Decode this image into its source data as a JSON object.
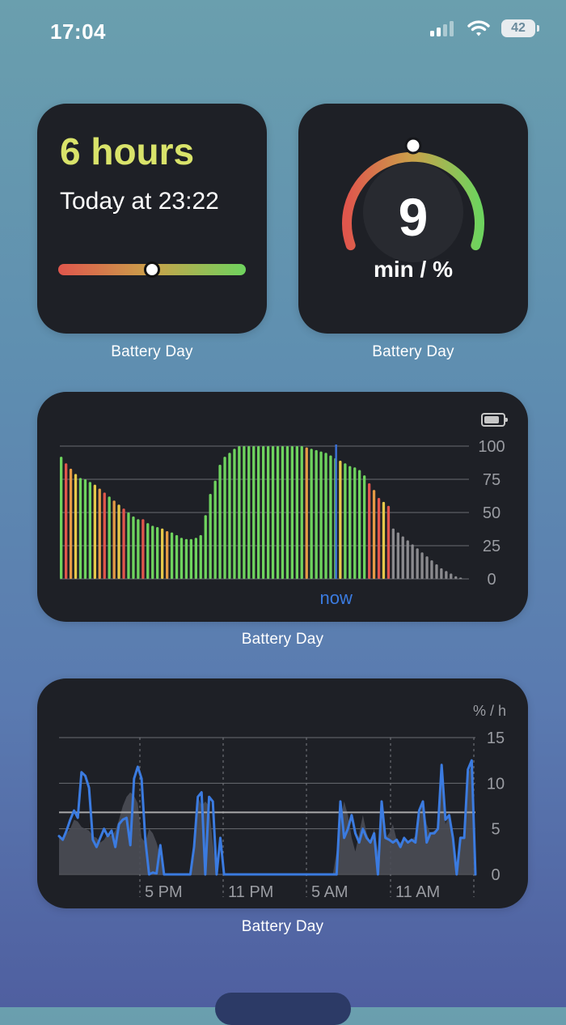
{
  "status_bar": {
    "time": "17:04",
    "battery_level": "42",
    "signal_icon": "cellular-signal-icon",
    "wifi_icon": "wifi-icon"
  },
  "widget_estimate": {
    "hours_text": "6 hours",
    "until_text": "Today at 23:22",
    "knob_fraction": 0.5,
    "caption": "Battery Day"
  },
  "widget_gauge": {
    "value": "9",
    "unit": "min / %",
    "knob_fraction": 0.5,
    "caption": "Battery Day"
  },
  "widget_level_chart": {
    "caption": "Battery Day",
    "now_label": "now",
    "battery_icon": "battery-icon",
    "colors": {
      "green": "#6ed35e",
      "yellow": "#e6c84a",
      "orange": "#e59a45",
      "red": "#e0564c",
      "gray": "#8a8a8e",
      "now_line": "#3b6fd4"
    }
  },
  "widget_rate_chart": {
    "caption": "Battery Day",
    "unit_label": "% / h",
    "colors": {
      "line": "#3b7be0",
      "area": "#4a4d55",
      "avg_line": "#a8a8aa"
    }
  },
  "chart_data": [
    {
      "type": "bar",
      "title": "",
      "xlabel": "",
      "ylabel": "",
      "ylim": [
        0,
        100
      ],
      "y_ticks": [
        "100",
        "75",
        "50",
        "25",
        "0"
      ],
      "annotation": "now",
      "now_index": 57,
      "grid": true,
      "series": [
        {
          "values": [
            92,
            87,
            83,
            79,
            76,
            75,
            73,
            71,
            68,
            65,
            62,
            59,
            56,
            53,
            50,
            47,
            45,
            45,
            42,
            40,
            39,
            38,
            36,
            35,
            33,
            31,
            30,
            30,
            31,
            33,
            48,
            64,
            74,
            86,
            92,
            95,
            98,
            100,
            100,
            100,
            100,
            100,
            100,
            100,
            100,
            100,
            100,
            100,
            100,
            100,
            100,
            99,
            98,
            97,
            96,
            95,
            93,
            91,
            89,
            87,
            85,
            84,
            82,
            78,
            72,
            67,
            61,
            58,
            55
          ]
        },
        {
          "values": [
            38,
            35,
            32,
            29,
            26,
            23,
            20,
            17,
            14,
            11,
            8,
            6,
            4,
            2,
            1
          ]
        }
      ],
      "bar_colors": [
        "green",
        "red",
        "orange",
        "yellow",
        "green",
        "green",
        "green",
        "yellow",
        "orange",
        "red",
        "green",
        "orange",
        "yellow",
        "red",
        "green",
        "green",
        "green",
        "red",
        "green",
        "green",
        "green",
        "yellow",
        "orange",
        "green",
        "green",
        "green",
        "green",
        "green",
        "green",
        "green",
        "green",
        "green",
        "green",
        "green",
        "green",
        "green",
        "green",
        "green",
        "green",
        "green",
        "green",
        "green",
        "green",
        "green",
        "green",
        "green",
        "green",
        "green",
        "green",
        "green",
        "green",
        "orange",
        "green",
        "green",
        "green",
        "green",
        "green",
        "green",
        "yellow",
        "green",
        "green",
        "green",
        "green",
        "green",
        "red",
        "orange",
        "red",
        "yellow",
        "red"
      ]
    },
    {
      "type": "area",
      "title": "",
      "unit": "% / h",
      "ylim": [
        0,
        15
      ],
      "y_ticks": [
        "15",
        "10",
        "5",
        "0"
      ],
      "x_tick_labels": [
        "5 PM",
        "11 PM",
        "5 AM",
        "11 AM"
      ],
      "average": 6.8,
      "grid": true,
      "series": [
        {
          "values": [
            4.2,
            4.0,
            4.5,
            5.0,
            6.0,
            5.8,
            5.2,
            5.0,
            4.8,
            4.2,
            4.0,
            3.5,
            3.8,
            4.5,
            4.2,
            4.8,
            6.0,
            7.5,
            8.5,
            9.0,
            8.6,
            7.8,
            4.0,
            3.5,
            5.0,
            4.5,
            3.5,
            2.0,
            0,
            0,
            0,
            0,
            0,
            0,
            0,
            0,
            2.0,
            8.5,
            7.5,
            8.0,
            7.5,
            3.5,
            0,
            0,
            0,
            0,
            0,
            0,
            0,
            0,
            0,
            0,
            0,
            0,
            0,
            0,
            0,
            0,
            0,
            0,
            0,
            0,
            0,
            0,
            0,
            0,
            0,
            0,
            0,
            0,
            0,
            0,
            0,
            0,
            2.5,
            6.0,
            8.0,
            6.5,
            4.0,
            2.5,
            4.5,
            6.5,
            4.5,
            3.5,
            5.0,
            2.5,
            8.0,
            4.0,
            4.5,
            5.5,
            3.8,
            3.5,
            4.0,
            3.5,
            3.8,
            4.2,
            6.0,
            8.0,
            5.5,
            4.5,
            4.8,
            5.0,
            12.2,
            5.5,
            6.5,
            4.0,
            0,
            4.2,
            4.0,
            11.0,
            12.0,
            0
          ]
        },
        {
          "values": [
            4.2,
            3.8,
            4.8,
            6.0,
            7.0,
            6.2,
            11.2,
            10.8,
            9.5,
            3.8,
            3.0,
            4.0,
            5.0,
            4.2,
            4.8,
            3.0,
            5.5,
            6.0,
            6.2,
            3.2,
            10.5,
            11.8,
            10.5,
            3.8,
            0,
            0.2,
            0.1,
            3.2,
            0,
            0,
            0,
            0,
            0,
            0,
            0,
            0,
            3.0,
            8.5,
            9.0,
            0,
            8.5,
            8.0,
            0,
            4.0,
            0,
            0,
            0,
            0,
            0,
            0,
            0,
            0,
            0,
            0,
            0,
            0,
            0,
            0,
            0,
            0,
            0,
            0,
            0,
            0,
            0,
            0,
            0,
            0,
            0,
            0,
            0,
            0,
            0,
            0,
            0,
            8.0,
            4.0,
            5.0,
            6.5,
            4.5,
            3.5,
            5.0,
            4.0,
            3.5,
            4.5,
            0,
            8.0,
            4.0,
            3.8,
            3.5,
            3.8,
            3.0,
            4.0,
            3.5,
            3.8,
            3.5,
            7.0,
            8.0,
            3.5,
            4.5,
            4.5,
            5.0,
            12.0,
            6.0,
            6.5,
            4.0,
            0,
            4.0,
            4.0,
            11.5,
            12.5,
            0
          ]
        }
      ]
    }
  ]
}
